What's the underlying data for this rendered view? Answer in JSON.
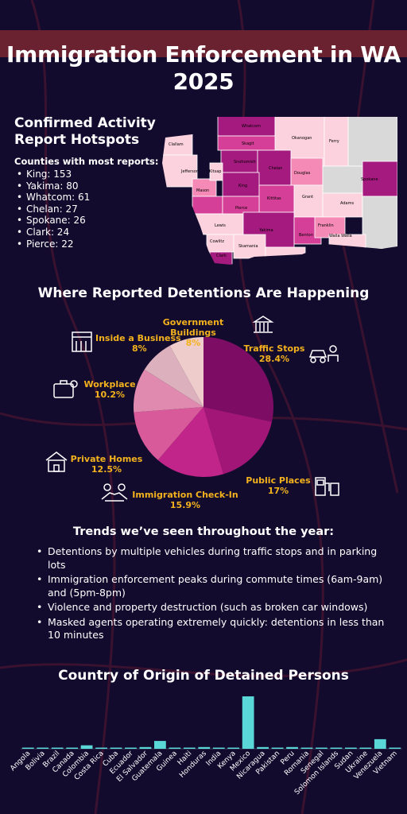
{
  "title": "Immigration Enforcement in WA 2025",
  "hotspots": {
    "title": "Confirmed Activity Report Hotspots",
    "subtitle": "Counties with most reports:",
    "items": [
      "King: 153",
      "Yakima: 80",
      "Whatcom: 61",
      "Chelan: 27",
      "Spokane: 26",
      "Clark: 24",
      "Pierce: 22"
    ]
  },
  "map": {
    "counties": [
      "Whatcom",
      "Okanogan",
      "Ferry",
      "Skagit",
      "Snohomish",
      "Clallam",
      "Jefferson",
      "Chelan",
      "Douglas",
      "King",
      "Spokane",
      "Mason",
      "Kitsap",
      "Kittitas",
      "Grant",
      "Adams",
      "Pierce",
      "Lewis",
      "Yakima",
      "Benton",
      "Franklin",
      "Walla Walla",
      "Cowlitz",
      "Skamania",
      "Clark"
    ],
    "colors": {
      "dark": "#a51a7e",
      "mid": "#d63f97",
      "light": "#f48ab5",
      "pale": "#fbd2dd",
      "none": "#d9d9d9"
    }
  },
  "detentions": {
    "title": "Where Reported Detentions Are Happening",
    "chart_data": {
      "type": "pie",
      "categories": [
        "Traffic Stops",
        "Public Places",
        "Immigration Check-In",
        "Private Homes",
        "Workplace",
        "Inside a Business",
        "Government Buildings"
      ],
      "values": [
        28.4,
        17,
        15.9,
        12.5,
        10.2,
        8,
        8
      ],
      "labels": [
        "28.4%",
        "17%",
        "15.9%",
        "12.5%",
        "10.2%",
        "8%",
        "8%"
      ],
      "colors": [
        "#7d0d64",
        "#a11676",
        "#c2258a",
        "#d85a9a",
        "#df8aae",
        "#ddb0bd",
        "#efcccc"
      ]
    }
  },
  "trends": {
    "title": "Trends we’ve seen throughout the year:",
    "items": [
      "Detentions by multiple vehicles during traffic stops and in parking lots",
      "Immigration enforcement peaks during commute times (6am-9am) and (5pm-8pm)",
      "Violence and property destruction (such as broken car windows)",
      "Masked agents operating extremely quickly: detentions in less than 10 minutes"
    ]
  },
  "origin": {
    "title": "Country of Origin of Detained Persons",
    "chart_data": {
      "type": "bar",
      "categories": [
        "Angola",
        "Bolivia",
        "Brazil",
        "Canada",
        "Colombia",
        "Costa Rica",
        "Cuba",
        "Ecuador",
        "El Salvador",
        "Guatemala",
        "Guinea",
        "Haiti",
        "Honduras",
        "India",
        "Kenya",
        "Mexico",
        "Nicaragua",
        "Pakistan",
        "Peru",
        "Romania",
        "Senegal",
        "Solomon Islands",
        "Sudan",
        "Ukraine",
        "Venezuela",
        "Vietnam"
      ],
      "values": [
        1,
        1,
        1,
        1,
        4,
        1,
        1,
        1,
        2,
        9,
        0.5,
        1,
        2,
        1,
        1,
        60,
        2,
        1,
        2,
        0.5,
        0.5,
        0.5,
        0.5,
        0.5,
        11,
        0.5
      ],
      "ylim": [
        0,
        60
      ],
      "color": "#5ad8d8"
    }
  }
}
